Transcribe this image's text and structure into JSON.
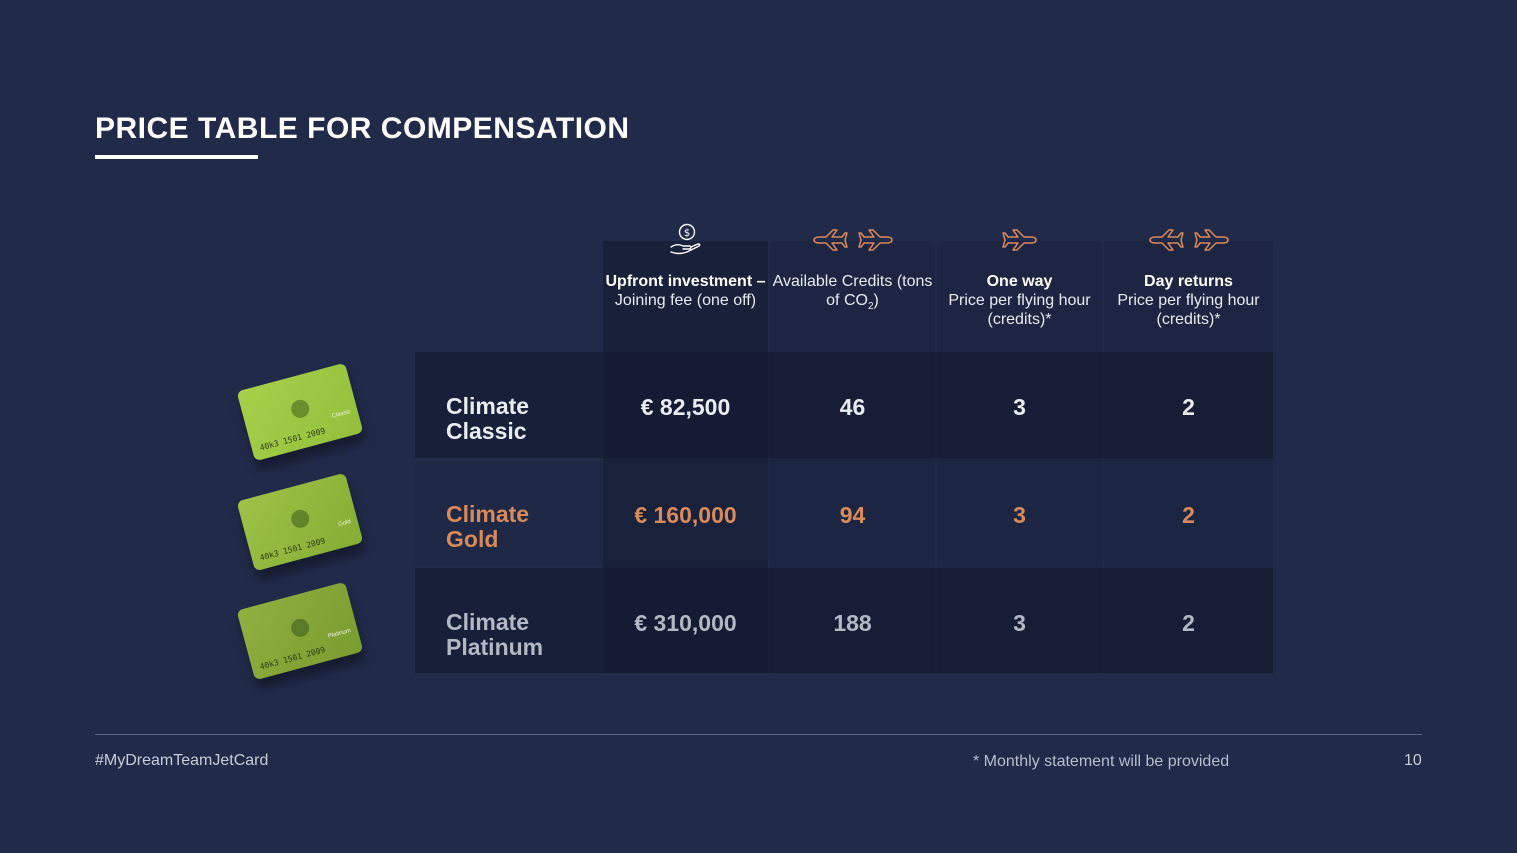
{
  "slide": {
    "title": "PRICE TABLE FOR COMPENSATION",
    "footer_hashtag": "#MyDreamTeamJetCard",
    "footer_note": "* Monthly statement will be provided",
    "page_number": "10"
  },
  "colors": {
    "background": "#212a49",
    "accent_gold": "#d98a5a",
    "icon_stroke": "#d98a5a"
  },
  "columns": [
    {
      "icon": "money-hand-icon",
      "bold": "Upfront investment –",
      "normal": "Joining fee (one off)"
    },
    {
      "icon": "planes-roundtrip-icon",
      "bold": "",
      "normal": "Available Credits (tons of CO",
      "sub": "2",
      "tail": ")"
    },
    {
      "icon": "plane-oneway-icon",
      "bold": "One way",
      "normal": "Price per flying hour (credits)*"
    },
    {
      "icon": "planes-roundtrip-icon",
      "bold": "Day returns",
      "normal": "Price per flying hour (credits)*"
    }
  ],
  "rows": [
    {
      "name_line1": "Climate",
      "name_line2": "Classic",
      "card": {
        "number": "40k3 1501 2009",
        "tier": "Classic"
      },
      "values": [
        "€ 82,500",
        "46",
        "3",
        "2"
      ]
    },
    {
      "name_line1": "Climate",
      "name_line2": "Gold",
      "card": {
        "number": "40k3 1501 2009",
        "tier": "Gold"
      },
      "values": [
        "€ 160,000",
        "94",
        "3",
        "2"
      ]
    },
    {
      "name_line1": "Climate",
      "name_line2": "Platinum",
      "card": {
        "number": "40k3 1501 2009",
        "tier": "Platinum"
      },
      "values": [
        "€ 310,000",
        "188",
        "3",
        "2"
      ]
    }
  ]
}
